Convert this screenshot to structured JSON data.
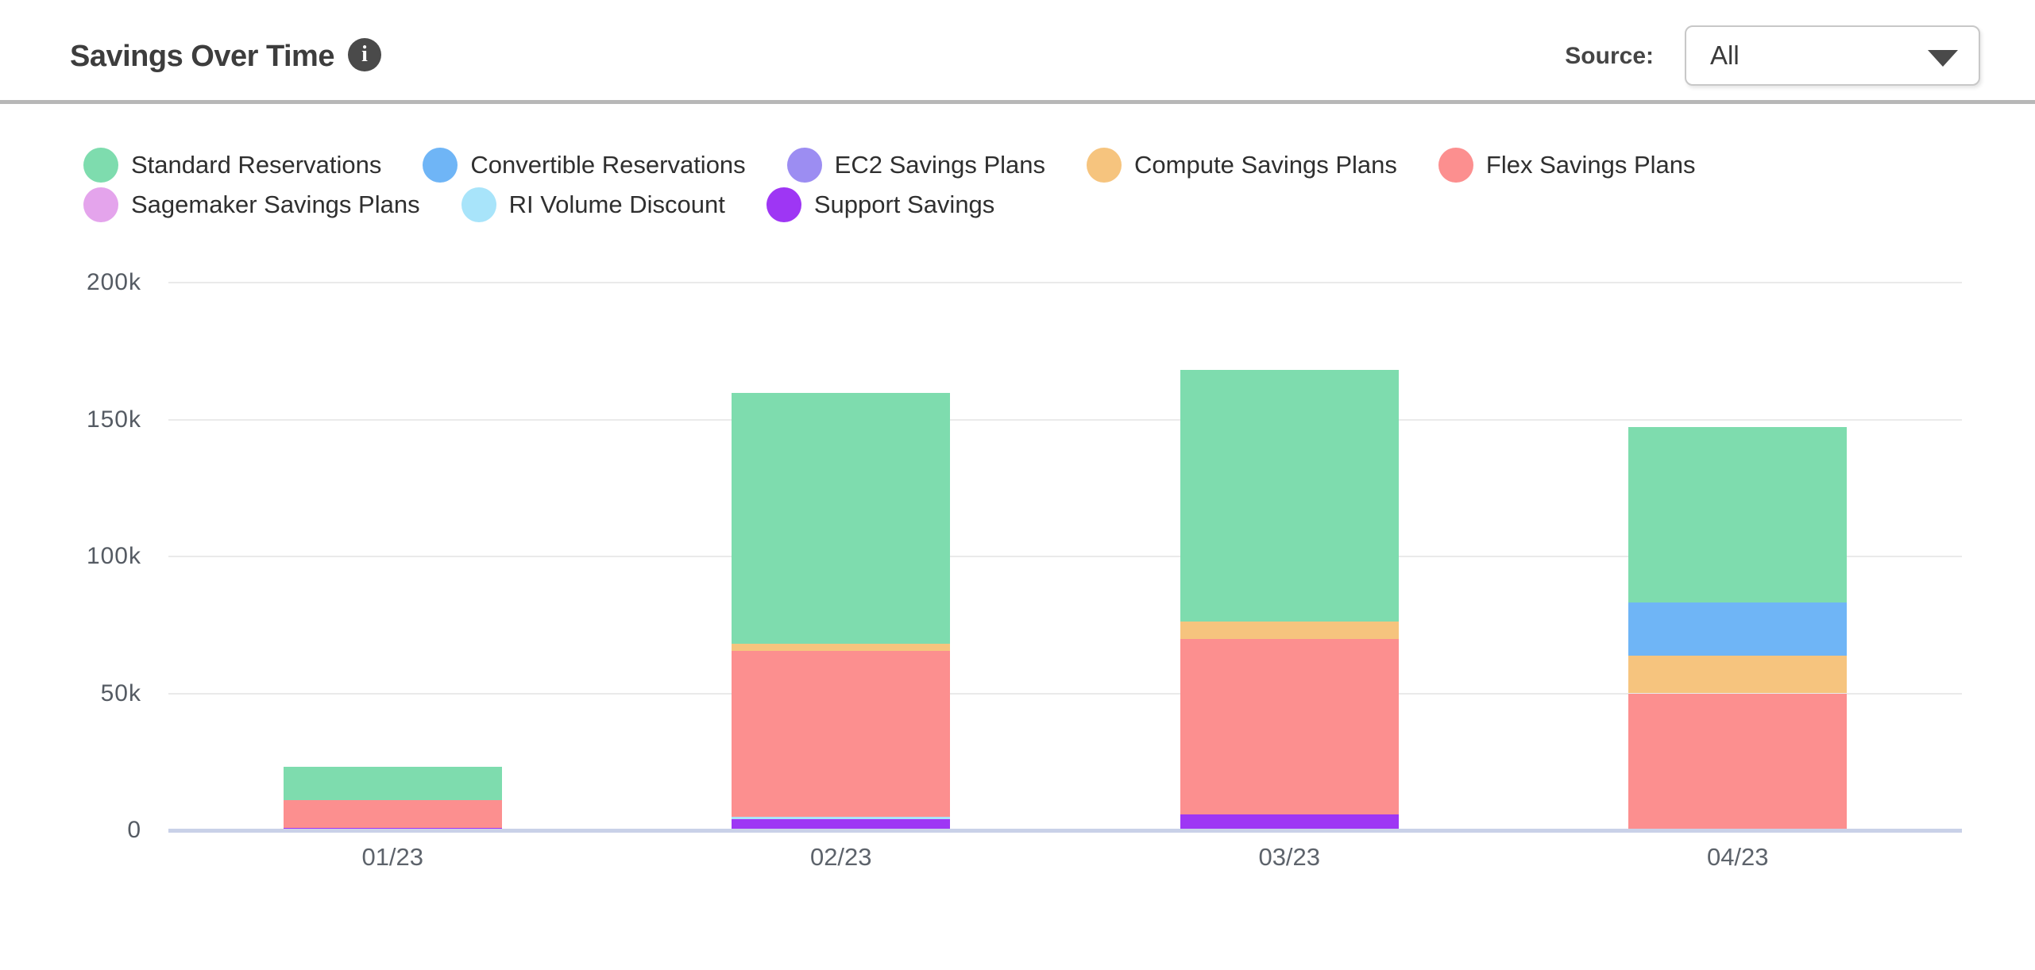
{
  "header": {
    "title": "Savings Over Time",
    "info_icon_glyph": "i"
  },
  "source_filter": {
    "label": "Source:",
    "value": "All"
  },
  "chart_data": {
    "type": "bar",
    "subtype": "stacked-vertical",
    "title": "Savings Over Time",
    "categories": [
      "01/23",
      "02/23",
      "03/23",
      "04/23"
    ],
    "unit": "thousands (k)",
    "ylim": [
      0,
      200
    ],
    "yticks": [
      "200k",
      "150k",
      "100k",
      "50k",
      "0"
    ],
    "ytick_values_k": [
      200,
      150,
      100,
      50,
      0
    ],
    "grid": "horizontal",
    "legend_position": "top",
    "series": [
      {
        "name": "Standard Reservations",
        "color": "#7EDCAE",
        "values_k": [
          12.2,
          91.8,
          91.7,
          64.2
        ]
      },
      {
        "name": "Convertible Reservations",
        "color": "#6FB5F6",
        "values_k": [
          0,
          0,
          0,
          19.3
        ]
      },
      {
        "name": "EC2 Savings Plans",
        "color": "#9C8DF2",
        "values_k": [
          0,
          0,
          0,
          0
        ]
      },
      {
        "name": "Compute Savings Plans",
        "color": "#F6C47E",
        "values_k": [
          0,
          2.6,
          6.5,
          13.8
        ]
      },
      {
        "name": "Flex Savings Plans",
        "color": "#FC8F8F",
        "values_k": [
          10.1,
          60.4,
          63.9,
          50.0
        ]
      },
      {
        "name": "Sagemaker Savings Plans",
        "color": "#E4A4EC",
        "values_k": [
          0,
          0,
          0,
          0
        ]
      },
      {
        "name": "RI Volume Discount",
        "color": "#A8E4FA",
        "values_k": [
          0,
          0.95,
          0,
          0
        ]
      },
      {
        "name": "Support Savings",
        "color": "#9E36F4",
        "values_k": [
          0.9,
          4.05,
          5.9,
          0
        ]
      }
    ],
    "stack_order_bottom_to_top": [
      "Support Savings",
      "RI Volume Discount",
      "Sagemaker Savings Plans",
      "Flex Savings Plans",
      "Compute Savings Plans",
      "EC2 Savings Plans",
      "Convertible Reservations",
      "Standard Reservations"
    ],
    "totals_k": [
      23.2,
      159.8,
      168.1,
      147.3
    ]
  }
}
